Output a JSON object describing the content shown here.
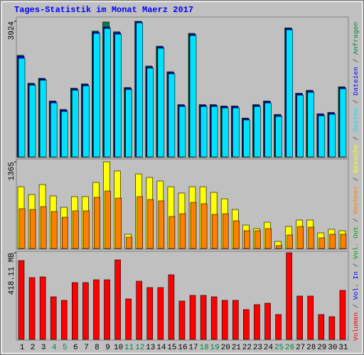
{
  "chart_data": [
    {
      "type": "bar",
      "title": "Tages-Statistik im Monat Maerz 2017",
      "ylim": [
        0,
        3924
      ],
      "yticks": [
        3924
      ],
      "series": [
        {
          "name": "Anfragen",
          "color": "#008040",
          "values": [
            2940,
            2135,
            2278,
            1620,
            1375,
            1990,
            2115,
            3640,
            3903,
            3620,
            2010,
            3924,
            2630,
            3205,
            2465,
            1515,
            3575,
            1515,
            1515,
            1475,
            1475,
            1125,
            1515,
            1620,
            1230,
            3735,
            1845,
            1930,
            1250,
            1290,
            2030
          ]
        },
        {
          "name": "Dateien",
          "color": "#0000ff",
          "values": [
            2917,
            2110,
            2255,
            1600,
            1355,
            1968,
            2093,
            3615,
            3760,
            3595,
            1990,
            3905,
            2608,
            3183,
            2443,
            1496,
            3552,
            1496,
            1496,
            1455,
            1455,
            1106,
            1496,
            1600,
            1210,
            3715,
            1825,
            1908,
            1230,
            1270,
            2010
          ]
        },
        {
          "name": "Seiten",
          "color": "#00e0ff",
          "values": [
            2855,
            2075,
            2218,
            1561,
            1315,
            1931,
            2054,
            3574,
            3718,
            3553,
            1951,
            3880,
            2568,
            3143,
            2403,
            1458,
            3512,
            1458,
            1458,
            1417,
            1417,
            1068,
            1458,
            1561,
            1171,
            3677,
            1787,
            1869,
            1191,
            1232,
            1972
          ]
        }
      ]
    },
    {
      "type": "bar",
      "ylim": [
        0,
        1365
      ],
      "yticks": [
        1365
      ],
      "series": [
        {
          "name": "Besuche",
          "color": "#ffff00",
          "values": [
            973,
            850,
            1007,
            828,
            649,
            817,
            817,
            1041,
            1365,
            1220,
            224,
            1175,
            1119,
            1063,
            973,
            873,
            973,
            973,
            884,
            783,
            615,
            369,
            313,
            414,
            112,
            347,
            448,
            448,
            246,
            302,
            280
          ]
        },
        {
          "name": "Rechner",
          "color": "#ff8000",
          "values": [
            627,
            615,
            660,
            582,
            492,
            593,
            593,
            806,
            906,
            794,
            179,
            817,
            772,
            750,
            504,
            548,
            727,
            705,
            537,
            548,
            436,
            280,
            280,
            313,
            45,
            213,
            347,
            336,
            168,
            224,
            224
          ]
        }
      ]
    },
    {
      "type": "bar",
      "ylim": [
        0,
        418.11
      ],
      "yticks": [
        {
          "value": 418.11,
          "label": "418.11 MB"
        }
      ],
      "categories": [
        "1",
        "2",
        "3",
        "4",
        "5",
        "6",
        "7",
        "8",
        "9",
        "10",
        "11",
        "12",
        "13",
        "14",
        "15",
        "16",
        "17",
        "18",
        "19",
        "20",
        "21",
        "22",
        "23",
        "24",
        "25",
        "26",
        "27",
        "28",
        "29",
        "30",
        "31"
      ],
      "category_colors": [
        "#000000",
        "#000000",
        "#000000",
        "#008040",
        "#008040",
        "#000000",
        "#000000",
        "#000000",
        "#000000",
        "#000000",
        "#008040",
        "#008040",
        "#000000",
        "#000000",
        "#000000",
        "#000000",
        "#000000",
        "#008040",
        "#008040",
        "#000000",
        "#000000",
        "#000000",
        "#000000",
        "#000000",
        "#008040",
        "#008040",
        "#000000",
        "#000000",
        "#000000",
        "#000000",
        "#000000"
      ],
      "series": [
        {
          "name": "Volumen",
          "color": "#ff0000",
          "values": [
            380.4,
            298.2,
            301.6,
            205.6,
            188.5,
            274.2,
            274.2,
            287.9,
            287.9,
            383.8,
            195.3,
            281.0,
            250.2,
            250.2,
            311.9,
            185.1,
            212.5,
            212.5,
            205.6,
            188.5,
            188.5,
            143.9,
            167.9,
            174.8,
            120.0,
            418.11,
            209.1,
            209.1,
            120.0,
            109.7,
            236.5
          ]
        }
      ],
      "extra_legend": [
        {
          "name": "Vol. In",
          "color": "#0000ff"
        },
        {
          "name": "Vol. Out",
          "color": "#00a000"
        }
      ],
      "legend_separator": "/"
    }
  ]
}
